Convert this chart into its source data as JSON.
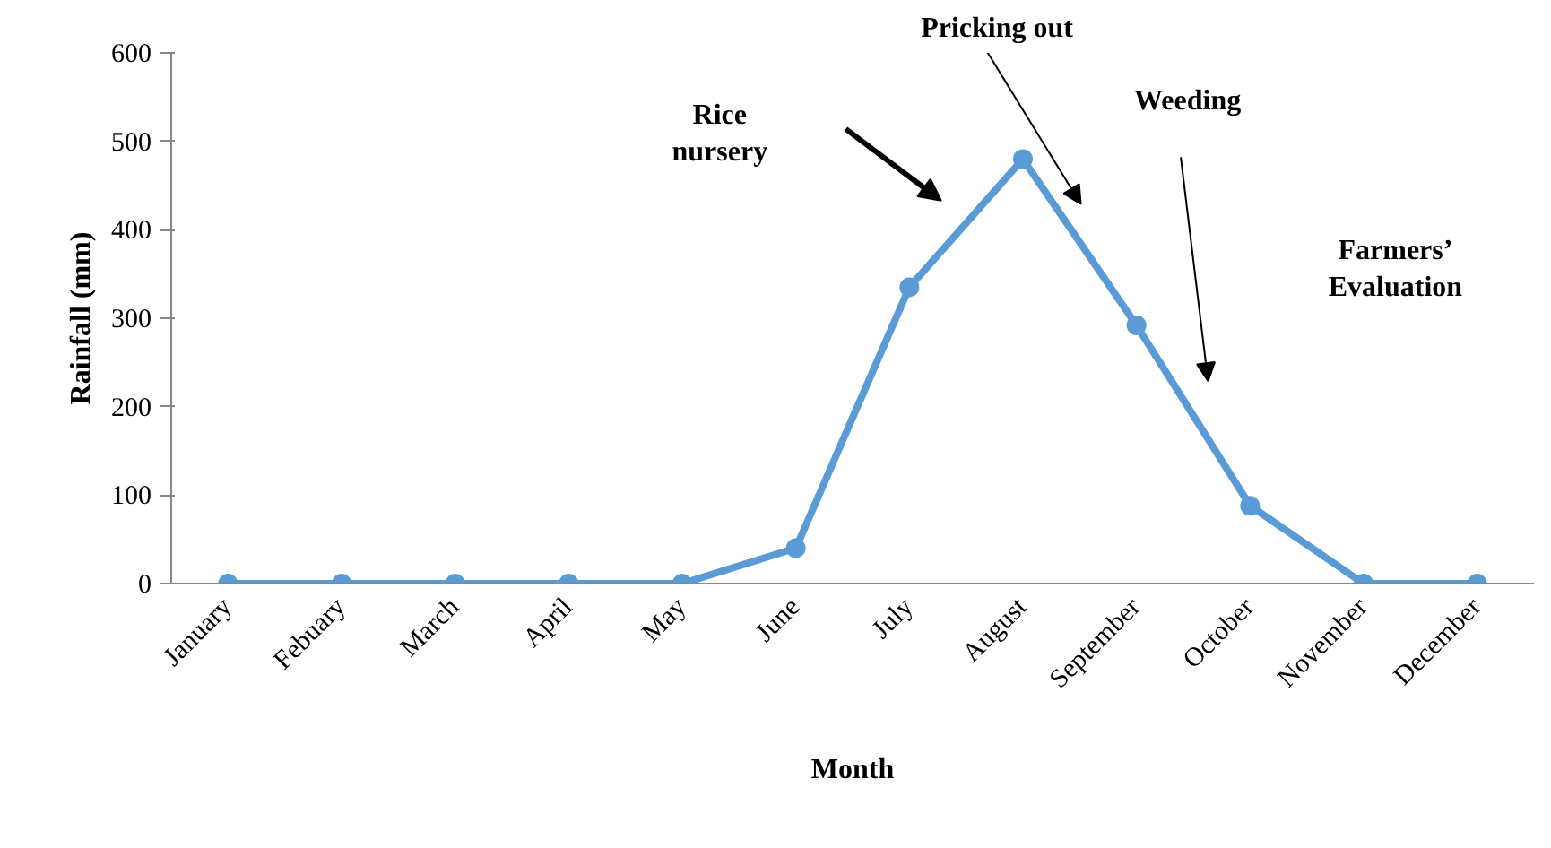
{
  "chart_data": {
    "type": "line",
    "xlabel": "Month",
    "ylabel": "Rainfall (mm)",
    "categories": [
      "January",
      "Febuary",
      "March",
      "April",
      "May",
      "June",
      "July",
      "August",
      "September",
      "October",
      "November",
      "December"
    ],
    "values": [
      0,
      0,
      0,
      0,
      0,
      40,
      335,
      480,
      292,
      88,
      0,
      0
    ],
    "color": "#5b9bd5",
    "marker": "circle",
    "line_style": "solid",
    "grid": false,
    "ylim": [
      0,
      600
    ],
    "yticks": [
      0,
      100,
      200,
      300,
      400,
      500,
      600
    ],
    "annotations": [
      "Rice nursery",
      "Pricking out",
      "Weeding",
      "Farmers’ Evaluation"
    ]
  }
}
